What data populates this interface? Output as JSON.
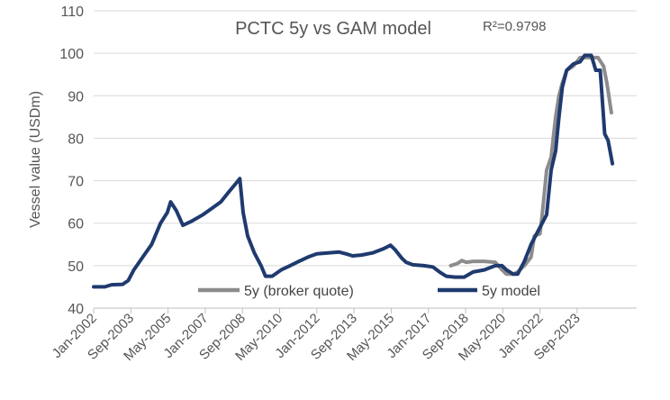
{
  "chart_data": {
    "type": "line",
    "title": "PCTC 5y vs GAM model",
    "annotation": "R²=0.9798",
    "xlabel": "",
    "ylabel": "Vessel value (USDm)",
    "ylim": [
      40,
      110
    ],
    "yticks": [
      "40",
      "50",
      "60",
      "70",
      "80",
      "90",
      "100",
      "110"
    ],
    "xticks": [
      "Jan-2002",
      "Sep-2003",
      "May-2005",
      "Jan-2007",
      "Sep-2008",
      "May-2010",
      "Jan-2012",
      "Sep-2013",
      "May-2015",
      "Jan-2017",
      "Sep-2018",
      "May-2020",
      "Jan-2022",
      "Sep-2023"
    ],
    "grid": true,
    "legend_position": "bottom-inside",
    "colors": {
      "broker": "#8c8c8c",
      "model": "#1f3a6e",
      "grid": "#d9d9d9",
      "axis": "#bfbfbf"
    },
    "series": [
      {
        "name": "5y (broker quote)",
        "key": "broker",
        "points": [
          [
            2018.0,
            50.0
          ],
          [
            2018.3,
            50.5
          ],
          [
            2018.5,
            51.2
          ],
          [
            2018.7,
            50.8
          ],
          [
            2019.0,
            51.0
          ],
          [
            2019.5,
            51.0
          ],
          [
            2020.0,
            50.8
          ],
          [
            2020.3,
            49.0
          ],
          [
            2020.5,
            48.0
          ],
          [
            2020.8,
            48.0
          ],
          [
            2021.0,
            48.5
          ],
          [
            2021.3,
            50.0
          ],
          [
            2021.6,
            52.0
          ],
          [
            2021.75,
            57.0
          ],
          [
            2022.0,
            57.5
          ],
          [
            2022.1,
            62.0
          ],
          [
            2022.3,
            72.5
          ],
          [
            2022.5,
            75.5
          ],
          [
            2022.7,
            85.0
          ],
          [
            2022.85,
            90.0
          ],
          [
            2023.0,
            93.0
          ],
          [
            2023.2,
            96.0
          ],
          [
            2023.5,
            97.0
          ],
          [
            2023.8,
            99.0
          ],
          [
            2024.3,
            99.0
          ],
          [
            2024.6,
            99.0
          ],
          [
            2024.85,
            97.0
          ],
          [
            2025.0,
            93.0
          ],
          [
            2025.2,
            86.0
          ]
        ]
      },
      {
        "name": "5y model",
        "key": "model",
        "points": [
          [
            2002.0,
            45.0
          ],
          [
            2002.5,
            45.0
          ],
          [
            2002.8,
            45.5
          ],
          [
            2003.3,
            45.6
          ],
          [
            2003.55,
            46.5
          ],
          [
            2003.8,
            49.0
          ],
          [
            2004.2,
            52.0
          ],
          [
            2004.6,
            55.0
          ],
          [
            2005.0,
            60.0
          ],
          [
            2005.3,
            62.5
          ],
          [
            2005.45,
            65.0
          ],
          [
            2005.7,
            63.0
          ],
          [
            2006.0,
            59.5
          ],
          [
            2006.4,
            60.5
          ],
          [
            2006.9,
            62.0
          ],
          [
            2007.3,
            63.5
          ],
          [
            2007.7,
            65.0
          ],
          [
            2008.0,
            67.0
          ],
          [
            2008.4,
            69.5
          ],
          [
            2008.55,
            70.5
          ],
          [
            2008.7,
            62.5
          ],
          [
            2008.9,
            57.0
          ],
          [
            2009.2,
            53.0
          ],
          [
            2009.5,
            50.0
          ],
          [
            2009.7,
            47.5
          ],
          [
            2010.0,
            47.5
          ],
          [
            2010.4,
            49.0
          ],
          [
            2010.8,
            50.0
          ],
          [
            2011.2,
            51.0
          ],
          [
            2011.6,
            52.0
          ],
          [
            2012.0,
            52.8
          ],
          [
            2012.5,
            53.0
          ],
          [
            2013.0,
            53.2
          ],
          [
            2013.3,
            52.8
          ],
          [
            2013.6,
            52.3
          ],
          [
            2014.0,
            52.5
          ],
          [
            2014.5,
            53.0
          ],
          [
            2015.0,
            54.0
          ],
          [
            2015.3,
            54.8
          ],
          [
            2015.5,
            53.8
          ],
          [
            2015.8,
            51.8
          ],
          [
            2016.0,
            50.8
          ],
          [
            2016.3,
            50.2
          ],
          [
            2016.8,
            50.0
          ],
          [
            2017.2,
            49.7
          ],
          [
            2017.5,
            48.5
          ],
          [
            2017.8,
            47.5
          ],
          [
            2018.2,
            47.3
          ],
          [
            2018.6,
            47.3
          ],
          [
            2019.0,
            48.5
          ],
          [
            2019.5,
            49.0
          ],
          [
            2020.0,
            50.0
          ],
          [
            2020.3,
            50.0
          ],
          [
            2020.5,
            49.0
          ],
          [
            2020.8,
            48.0
          ],
          [
            2021.0,
            48.0
          ],
          [
            2021.3,
            51.0
          ],
          [
            2021.6,
            55.0
          ],
          [
            2022.0,
            59.0
          ],
          [
            2022.3,
            62.0
          ],
          [
            2022.5,
            72.5
          ],
          [
            2022.7,
            77.0
          ],
          [
            2022.85,
            85.0
          ],
          [
            2023.0,
            92.0
          ],
          [
            2023.2,
            96.0
          ],
          [
            2023.5,
            97.5
          ],
          [
            2023.8,
            98.0
          ],
          [
            2024.0,
            99.5
          ],
          [
            2024.3,
            99.5
          ],
          [
            2024.5,
            96.0
          ],
          [
            2024.7,
            96.0
          ],
          [
            2024.9,
            81.0
          ],
          [
            2025.05,
            79.5
          ],
          [
            2025.25,
            74.0
          ]
        ]
      }
    ]
  }
}
